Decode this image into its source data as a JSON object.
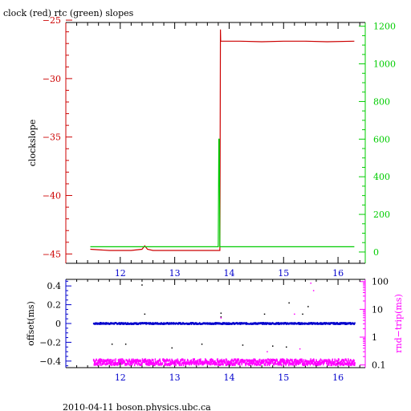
{
  "colors": {
    "red": "#cc0000",
    "green": "#00cc00",
    "blue": "#0000cc",
    "magenta": "#ff00ff",
    "black": "#000000"
  },
  "footer": "2010-04-11 boson.physics.ubc.ca",
  "chart_data": [
    {
      "type": "line",
      "title": "clock (red) rtc (green) slopes",
      "xlabel": "",
      "ylabel": "clockslope",
      "y2label": "",
      "xlim": [
        11.0,
        16.5
      ],
      "ylim": [
        -45.8,
        -25.2
      ],
      "y2lim": [
        -60,
        1220
      ],
      "xticks": [
        12,
        13,
        14,
        15,
        16
      ],
      "yticks": [
        -45,
        -40,
        -35,
        -30,
        -25
      ],
      "y2ticks": [
        0,
        200,
        400,
        600,
        800,
        1000,
        1200
      ],
      "series": [
        {
          "name": "clock",
          "color": "red",
          "axis": "left",
          "x": [
            11.45,
            11.8,
            12.2,
            12.4,
            12.45,
            12.5,
            12.6,
            13.0,
            13.4,
            13.83,
            13.84,
            13.845,
            13.85,
            14.2,
            14.6,
            15.0,
            15.4,
            15.8,
            16.3
          ],
          "y": [
            -44.6,
            -44.7,
            -44.7,
            -44.6,
            -44.3,
            -44.6,
            -44.7,
            -44.7,
            -44.7,
            -44.7,
            -25.8,
            -26.8,
            -26.8,
            -26.8,
            -26.85,
            -26.8,
            -26.8,
            -26.85,
            -26.8
          ]
        },
        {
          "name": "rtc",
          "color": "green",
          "axis": "right",
          "x": [
            11.45,
            12.5,
            13.8,
            13.81,
            13.82,
            13.83,
            13.84,
            14.5,
            15.5,
            16.3
          ],
          "y": [
            28,
            28,
            28,
            600,
            600,
            28,
            28,
            28,
            28,
            28
          ]
        }
      ]
    },
    {
      "type": "scatter",
      "title": "",
      "xlabel": "",
      "ylabel": "offset(ms)",
      "y2label": "rnd−trip(ms)",
      "xlim": [
        11.0,
        16.5
      ],
      "ylim": [
        -0.47,
        0.47
      ],
      "y2scale": "log",
      "y2lim": [
        0.08,
        120
      ],
      "xticks": [
        12,
        13,
        14,
        15,
        16
      ],
      "yticks": [
        -0.4,
        -0.2,
        0,
        0.2,
        0.4
      ],
      "y2ticks": [
        0.1,
        1,
        10,
        100
      ],
      "series": [
        {
          "name": "offset",
          "color": "blue",
          "axis": "left",
          "x_range": [
            11.5,
            16.3
          ],
          "y_level": 0.0,
          "y_spread": 0.008
        },
        {
          "name": "rnd-trip",
          "color": "magenta",
          "axis": "right",
          "x_range": [
            11.5,
            16.3
          ],
          "y_level": 0.13,
          "y_spread": 0.025
        }
      ],
      "outliers": [
        {
          "x": 12.4,
          "y": 0.41,
          "color": "black"
        },
        {
          "x": 12.45,
          "y": 0.1,
          "color": "black"
        },
        {
          "x": 13.85,
          "y": 0.11,
          "color": "black"
        },
        {
          "x": 13.85,
          "y": 0.07,
          "color": "black"
        },
        {
          "x": 14.65,
          "y": 0.1,
          "color": "black"
        },
        {
          "x": 15.35,
          "y": 0.1,
          "color": "black"
        },
        {
          "x": 15.1,
          "y": 0.22,
          "color": "black"
        },
        {
          "x": 15.45,
          "y": 0.18,
          "color": "black"
        },
        {
          "x": 11.85,
          "y": -0.22,
          "color": "black"
        },
        {
          "x": 12.1,
          "y": -0.22,
          "color": "black"
        },
        {
          "x": 12.95,
          "y": -0.26,
          "color": "black"
        },
        {
          "x": 13.5,
          "y": -0.22,
          "color": "black"
        },
        {
          "x": 14.25,
          "y": -0.23,
          "color": "black"
        },
        {
          "x": 14.8,
          "y": -0.24,
          "color": "black"
        },
        {
          "x": 15.05,
          "y": -0.25,
          "color": "black"
        },
        {
          "x": 15.5,
          "y": 0.43,
          "color": "magenta"
        },
        {
          "x": 15.55,
          "y": 0.35,
          "color": "magenta"
        },
        {
          "x": 15.2,
          "y": 0.1,
          "color": "magenta"
        },
        {
          "x": 13.85,
          "y": 0.06,
          "color": "magenta"
        },
        {
          "x": 14.7,
          "y": -0.3,
          "color": "magenta"
        },
        {
          "x": 15.3,
          "y": -0.27,
          "color": "magenta"
        }
      ]
    }
  ]
}
